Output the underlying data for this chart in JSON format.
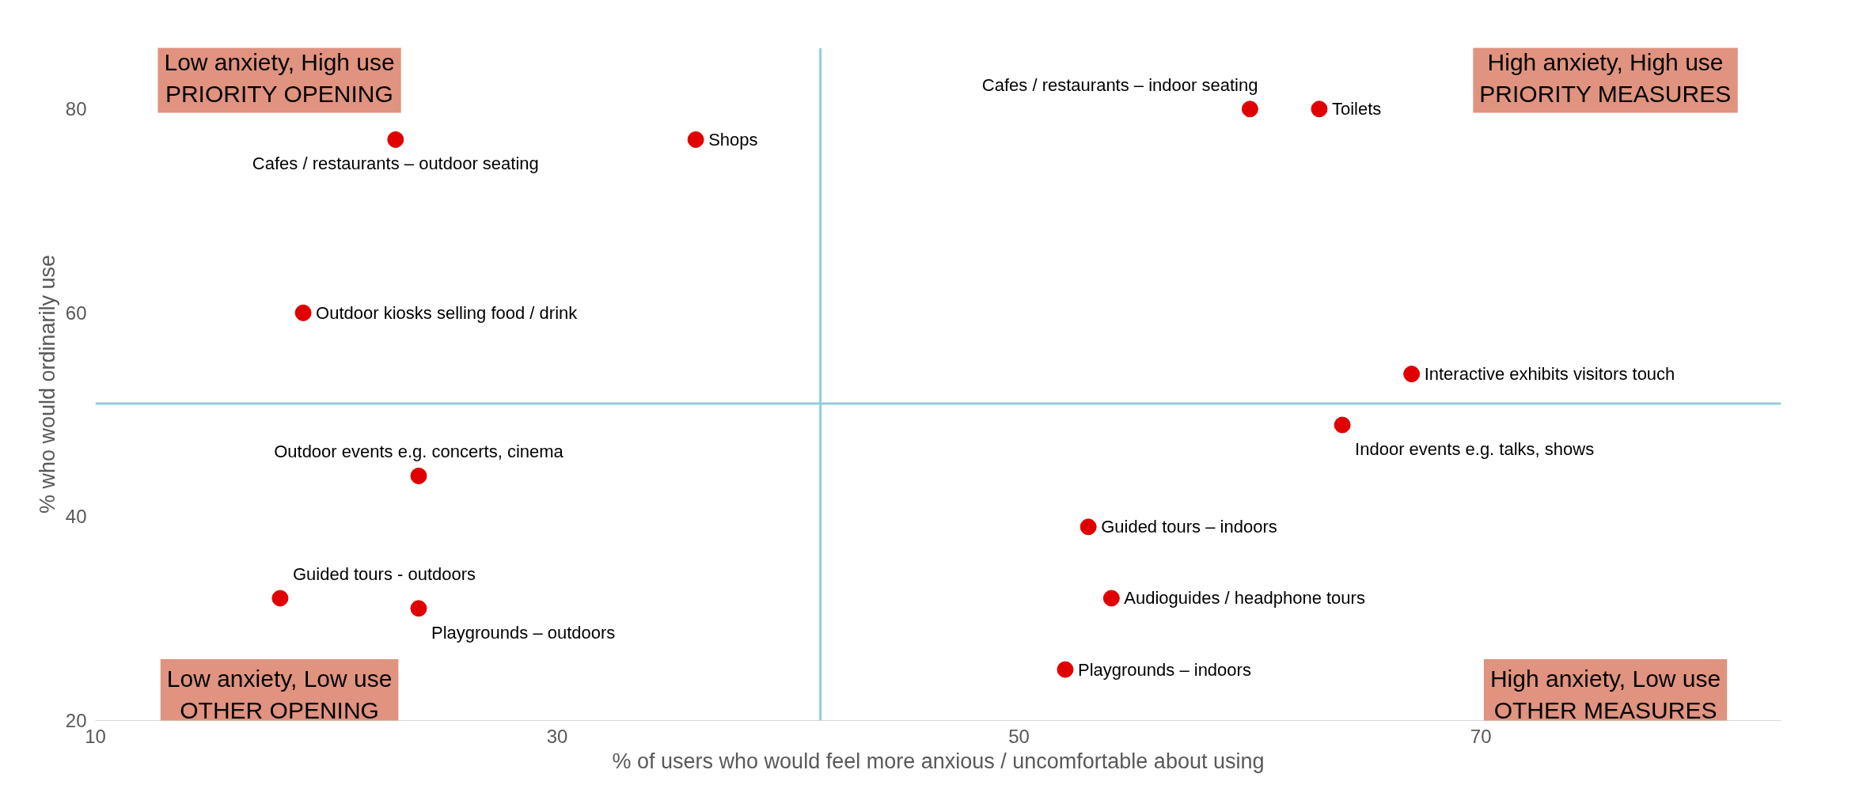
{
  "chart_data": {
    "type": "scatter",
    "xlabel": "% of users who would feel more anxious / uncomfortable about using",
    "ylabel": "% who would ordinarily use",
    "x": [
      23,
      36,
      19,
      24,
      18,
      24,
      60,
      63,
      67,
      64,
      53,
      54,
      52
    ],
    "series": [
      {
        "color": "#e00000",
        "values": [
          77,
          77,
          60,
          44,
          32,
          31,
          80,
          80,
          54,
          49,
          39,
          32,
          25
        ]
      }
    ],
    "marker": "circle",
    "xlim": [
      10,
      83
    ],
    "ylim": [
      20,
      86
    ],
    "xticks": [
      10,
      30,
      50,
      70
    ],
    "yticks": [
      20,
      40,
      60,
      80
    ],
    "grid": false,
    "ref_lines": [
      {
        "axis": "x",
        "value": 41.4,
        "label": null,
        "color": "#92cddc"
      },
      {
        "axis": "y",
        "value": 51.1,
        "label": null,
        "color": "#92cddc"
      }
    ],
    "annotations": [
      {
        "text": "Cafes / restaurants – outdoor seating",
        "x": 23,
        "y": 77
      },
      {
        "text": "Shops",
        "x": 36,
        "y": 77
      },
      {
        "text": "Outdoor kiosks selling food / drink",
        "x": 19,
        "y": 60
      },
      {
        "text": "Outdoor events e.g. concerts, cinema",
        "x": 24,
        "y": 44
      },
      {
        "text": "Guided tours - outdoors",
        "x": 18,
        "y": 32
      },
      {
        "text": "Playgrounds – outdoors",
        "x": 24,
        "y": 31
      },
      {
        "text": "Cafes / restaurants – indoor seating",
        "x": 60,
        "y": 80
      },
      {
        "text": "Toilets",
        "x": 63,
        "y": 80
      },
      {
        "text": "Interactive exhibits visitors touch",
        "x": 67,
        "y": 54
      },
      {
        "text": "Indoor events e.g. talks, shows",
        "x": 64,
        "y": 49
      },
      {
        "text": "Guided tours – indoors",
        "x": 53,
        "y": 39
      },
      {
        "text": "Audioguides / headphone tours",
        "x": 54,
        "y": 32
      },
      {
        "text": "Playgrounds – indoors",
        "x": 52,
        "y": 25
      },
      "Low anxiety, High use\nPRIORITY OPENING",
      "High anxiety, High use\nPRIORITY MEASURES",
      "Low anxiety, Low use\nOTHER OPENING",
      "High anxiety, Low use\nOTHER MEASURES"
    ]
  }
}
